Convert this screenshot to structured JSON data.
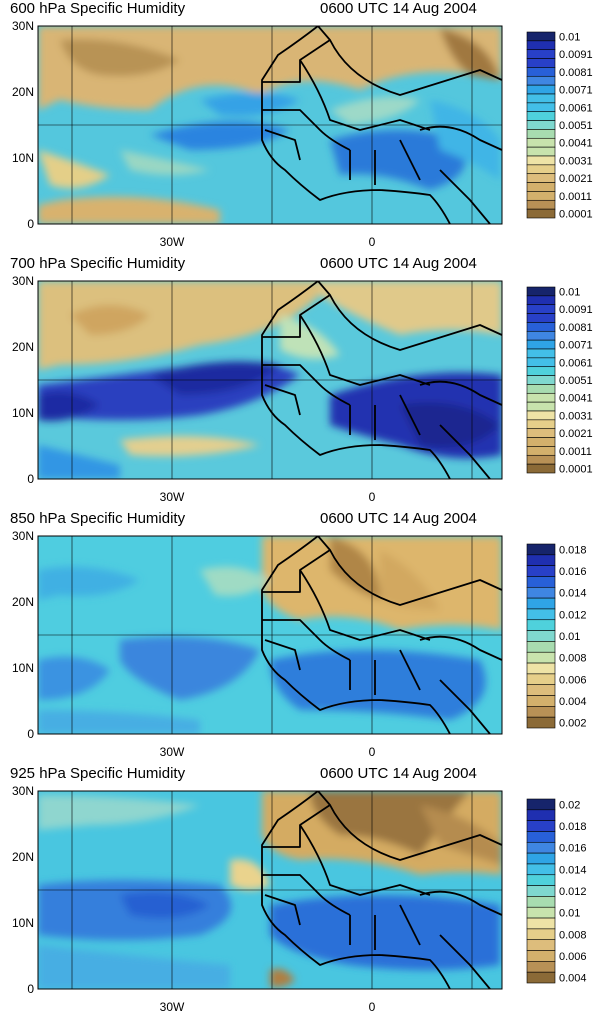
{
  "panels": [
    {
      "title_left": "600 hPa Specific Humidity",
      "title_right": "0600 UTC 14 Aug 2004",
      "colorbar_labels": [
        "0.01",
        "0.0091",
        "0.0081",
        "0.0071",
        "0.0061",
        "0.0051",
        "0.0041",
        "0.0031",
        "0.0021",
        "0.0011",
        "0.0001"
      ]
    },
    {
      "title_left": "700 hPa Specific Humidity",
      "title_right": "0600 UTC 14 Aug 2004",
      "colorbar_labels": [
        "0.01",
        "0.0091",
        "0.0081",
        "0.0071",
        "0.0061",
        "0.0051",
        "0.0041",
        "0.0031",
        "0.0021",
        "0.0011",
        "0.0001"
      ]
    },
    {
      "title_left": "850 hPa Specific Humidity",
      "title_right": "0600 UTC 14 Aug 2004",
      "colorbar_labels": [
        "0.018",
        "0.016",
        "0.014",
        "0.012",
        "0.01",
        "0.008",
        "0.006",
        "0.004",
        "0.002"
      ]
    },
    {
      "title_left": "925 hPa Specific Humidity",
      "title_right": "0600 UTC 14 Aug 2004",
      "colorbar_labels": [
        "0.02",
        "0.018",
        "0.016",
        "0.014",
        "0.012",
        "0.01",
        "0.008",
        "0.006",
        "0.004"
      ]
    }
  ],
  "axes": {
    "y_ticks": [
      "30N",
      "20N",
      "10N",
      "0"
    ],
    "x_ticks": [
      "30W",
      "0"
    ]
  },
  "colors": {
    "dry_dark": "#8b6a37",
    "dry": "#d3b06c",
    "dry_light": "#e6cf8a",
    "mid_green": "#a8dcb0",
    "cyan": "#4fd1dc",
    "sky": "#2fa4e6",
    "blue": "#2860d8",
    "deep_blue": "#1f2fb0",
    "navy": "#16246b",
    "land_line": "#000000"
  }
}
